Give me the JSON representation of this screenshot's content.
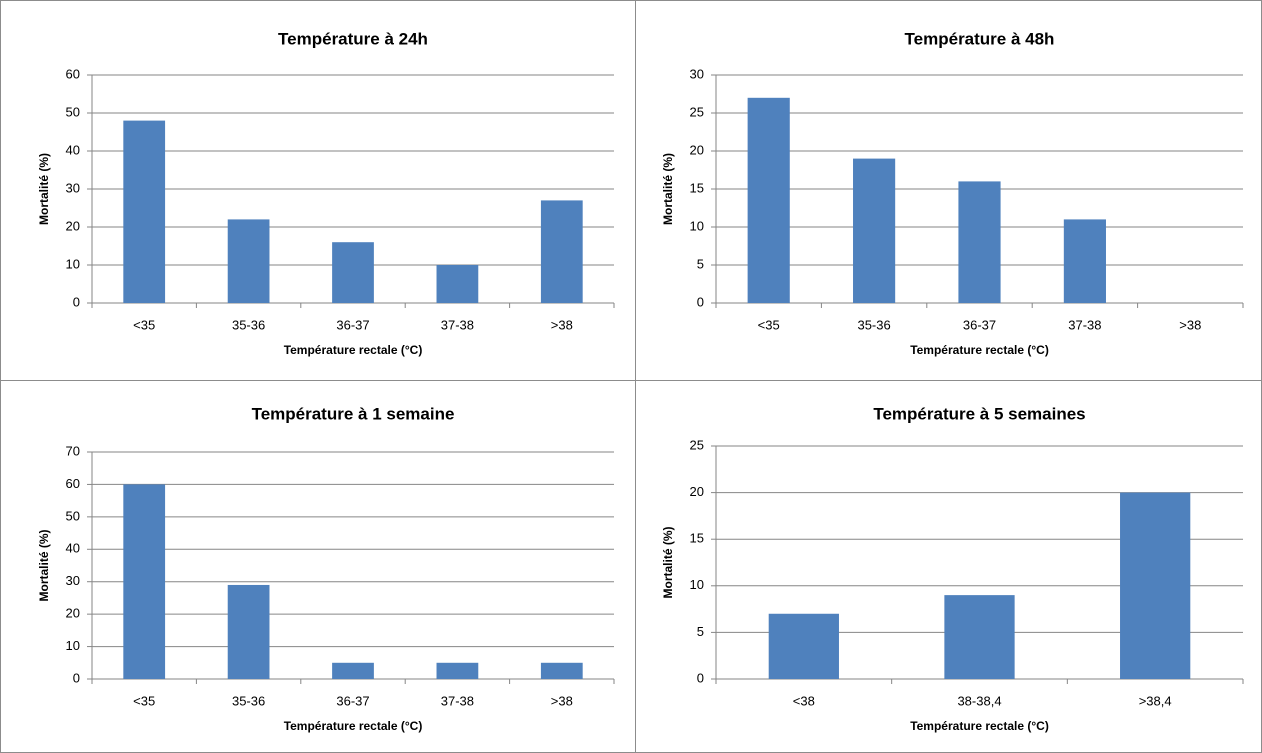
{
  "chart_data": [
    {
      "type": "bar",
      "title": "Température à 24h",
      "xlabel": "Température rectale (°C)",
      "ylabel": "Mortalité (%)",
      "categories": [
        "<35",
        "35-36",
        "36-37",
        "37-38",
        ">38"
      ],
      "values": [
        48,
        22,
        16,
        10,
        27
      ],
      "color": "#4f81bd",
      "ylim": [
        0,
        60
      ],
      "yticks": [
        0,
        10,
        20,
        30,
        40,
        50,
        60
      ],
      "grid": true
    },
    {
      "type": "bar",
      "title": "Température à 48h",
      "xlabel": "Température rectale (°C)",
      "ylabel": "Mortalité (%)",
      "categories": [
        "<35",
        "35-36",
        "36-37",
        "37-38",
        ">38"
      ],
      "values": [
        27,
        19,
        16,
        11,
        0
      ],
      "color": "#4f81bd",
      "ylim": [
        0,
        30
      ],
      "yticks": [
        0,
        5,
        10,
        15,
        20,
        25,
        30
      ],
      "grid": true
    },
    {
      "type": "bar",
      "title": "Température à 1 semaine",
      "xlabel": "Température rectale (°C)",
      "ylabel": "Mortalité (%)",
      "categories": [
        "<35",
        "35-36",
        "36-37",
        "37-38",
        ">38"
      ],
      "values": [
        60,
        29,
        5,
        5,
        5
      ],
      "color": "#4f81bd",
      "ylim": [
        0,
        70
      ],
      "yticks": [
        0,
        10,
        20,
        30,
        40,
        50,
        60,
        70
      ],
      "grid": true
    },
    {
      "type": "bar",
      "title": "Température à 5 semaines",
      "xlabel": "Température rectale (°C)",
      "ylabel": "Mortalité (%)",
      "categories": [
        "<38",
        "38-38,4",
        ">38,4"
      ],
      "values": [
        7,
        9,
        20
      ],
      "color": "#4f81bd",
      "ylim": [
        0,
        25
      ],
      "yticks": [
        0,
        5,
        10,
        15,
        20,
        25
      ],
      "grid": true
    }
  ]
}
